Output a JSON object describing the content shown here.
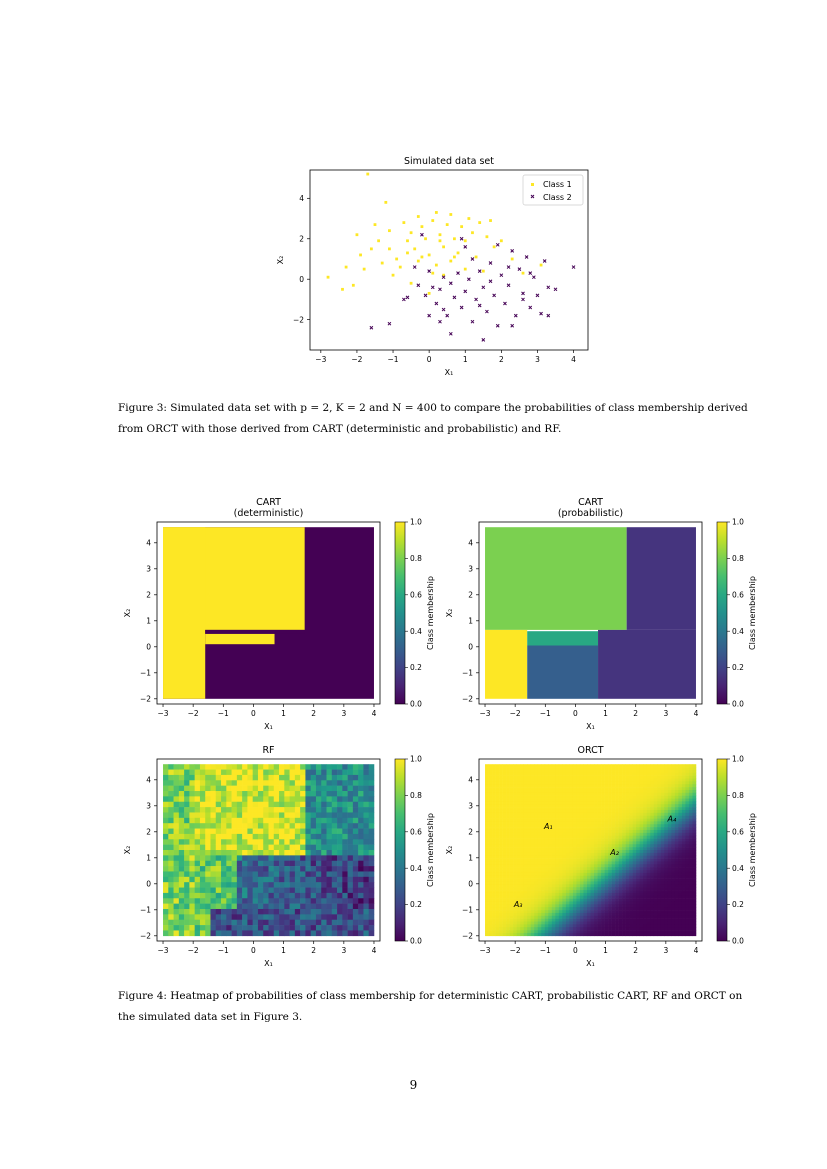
{
  "figure3": {
    "caption_line1": "Figure 3:  Simulated data set with p = 2, K = 2 and N = 400 to compare the probabilities of class membership derived",
    "caption_line2": "from ORCT with those derived from CART (deterministic and probabilistic) and RF."
  },
  "figure4": {
    "caption_line1": "Figure 4:  Heatmap of probabilities of class membership for deterministic CART, probabilistic CART, RF and ORCT on",
    "caption_line2": "the simulated data set in Figure 3."
  },
  "page_number": "9",
  "colors": {
    "yellow": "#fde725",
    "purple": "#440154",
    "green": "#a0da39",
    "teal": "#22a884",
    "midpurple": "#482878",
    "blue": "#3b528b"
  },
  "chart_data": [
    {
      "id": "scatter",
      "type": "scatter",
      "title": "Simulated data set",
      "xlabel": "X₁",
      "ylabel": "X₂",
      "xlim": [
        -3.3,
        4.4
      ],
      "ylim": [
        -3.5,
        5.4
      ],
      "xticks": [
        -3,
        -2,
        -1,
        0,
        1,
        2,
        3,
        4
      ],
      "yticks": [
        -2,
        0,
        2,
        4
      ],
      "legend_position": "top-right",
      "series": [
        {
          "name": "Class 1",
          "marker": "dot",
          "color": "#fde725",
          "points": [
            [
              -1.7,
              5.2
            ],
            [
              -1.2,
              3.8
            ],
            [
              -2.0,
              2.2
            ],
            [
              -1.6,
              1.5
            ],
            [
              -1.9,
              1.2
            ],
            [
              -2.3,
              0.6
            ],
            [
              -2.8,
              0.1
            ],
            [
              -2.1,
              -0.3
            ],
            [
              -2.4,
              -0.5
            ],
            [
              -1.8,
              0.5
            ],
            [
              -1.4,
              1.9
            ],
            [
              -1.1,
              2.4
            ],
            [
              -0.9,
              1.0
            ],
            [
              -0.7,
              2.8
            ],
            [
              -0.6,
              1.9
            ],
            [
              -0.5,
              2.3
            ],
            [
              -0.4,
              1.5
            ],
            [
              -0.3,
              3.1
            ],
            [
              -0.2,
              2.6
            ],
            [
              -0.1,
              2.0
            ],
            [
              0.0,
              1.2
            ],
            [
              0.1,
              2.9
            ],
            [
              0.2,
              3.3
            ],
            [
              0.3,
              2.2
            ],
            [
              0.4,
              1.6
            ],
            [
              0.5,
              2.7
            ],
            [
              0.6,
              3.2
            ],
            [
              0.7,
              2.0
            ],
            [
              0.8,
              1.3
            ],
            [
              0.9,
              2.6
            ],
            [
              1.0,
              1.9
            ],
            [
              1.1,
              3.0
            ],
            [
              1.2,
              2.3
            ],
            [
              1.3,
              1.1
            ],
            [
              1.4,
              2.8
            ],
            [
              1.6,
              2.1
            ],
            [
              1.8,
              1.6
            ],
            [
              -0.8,
              0.6
            ],
            [
              -0.3,
              0.9
            ],
            [
              0.2,
              0.7
            ],
            [
              0.6,
              0.9
            ],
            [
              -0.5,
              -0.2
            ],
            [
              -1.0,
              0.2
            ],
            [
              -1.3,
              0.8
            ],
            [
              0.4,
              0.2
            ],
            [
              1.0,
              0.5
            ],
            [
              -1.5,
              2.7
            ],
            [
              -0.2,
              1.1
            ],
            [
              0.7,
              1.1
            ],
            [
              2.3,
              1.0
            ],
            [
              3.1,
              0.7
            ],
            [
              2.6,
              0.3
            ],
            [
              1.5,
              0.4
            ],
            [
              0.0,
              -0.7
            ],
            [
              -0.6,
              1.3
            ],
            [
              0.3,
              1.9
            ],
            [
              -1.1,
              1.5
            ],
            [
              1.7,
              2.9
            ],
            [
              2.0,
              1.9
            ],
            [
              0.1,
              0.3
            ]
          ]
        },
        {
          "name": "Class 2",
          "marker": "x",
          "color": "#440154",
          "points": [
            [
              -1.6,
              -2.4
            ],
            [
              -1.1,
              -2.2
            ],
            [
              -0.7,
              -1.0
            ],
            [
              -0.4,
              0.6
            ],
            [
              -0.3,
              -0.3
            ],
            [
              -0.1,
              -0.8
            ],
            [
              0.0,
              0.4
            ],
            [
              0.2,
              -1.2
            ],
            [
              0.3,
              -0.5
            ],
            [
              0.4,
              0.1
            ],
            [
              0.5,
              -1.8
            ],
            [
              0.6,
              -0.2
            ],
            [
              0.7,
              -0.9
            ],
            [
              0.8,
              0.3
            ],
            [
              0.9,
              -1.4
            ],
            [
              1.0,
              -0.6
            ],
            [
              1.1,
              0.0
            ],
            [
              1.2,
              -2.1
            ],
            [
              1.3,
              -1.0
            ],
            [
              1.4,
              0.4
            ],
            [
              1.5,
              -0.4
            ],
            [
              1.6,
              -1.6
            ],
            [
              1.7,
              0.8
            ],
            [
              1.8,
              -0.8
            ],
            [
              1.9,
              -2.3
            ],
            [
              2.0,
              0.2
            ],
            [
              2.1,
              -1.2
            ],
            [
              2.2,
              -0.3
            ],
            [
              2.3,
              1.4
            ],
            [
              2.4,
              -1.8
            ],
            [
              2.5,
              0.5
            ],
            [
              2.6,
              -0.7
            ],
            [
              2.7,
              1.1
            ],
            [
              2.8,
              -1.4
            ],
            [
              2.9,
              0.1
            ],
            [
              3.0,
              -0.8
            ],
            [
              3.1,
              -1.7
            ],
            [
              3.2,
              0.9
            ],
            [
              3.3,
              -0.4
            ],
            [
              3.5,
              -0.5
            ],
            [
              4.0,
              0.6
            ],
            [
              0.6,
              -2.7
            ],
            [
              1.5,
              -3.0
            ],
            [
              2.3,
              -2.3
            ],
            [
              1.0,
              1.6
            ],
            [
              -0.2,
              2.2
            ],
            [
              0.9,
              2.0
            ],
            [
              0.3,
              -2.1
            ],
            [
              0.1,
              -0.4
            ],
            [
              1.4,
              -1.3
            ],
            [
              2.6,
              -1.0
            ],
            [
              3.3,
              -1.8
            ],
            [
              -0.6,
              -0.9
            ],
            [
              1.9,
              1.7
            ],
            [
              0.4,
              -1.5
            ],
            [
              1.2,
              1.0
            ],
            [
              2.2,
              0.6
            ],
            [
              1.7,
              -0.1
            ],
            [
              0.0,
              -1.8
            ],
            [
              2.8,
              0.3
            ]
          ]
        }
      ]
    },
    {
      "id": "cart_det",
      "type": "heatmap",
      "title": "CART\n(deterministic)",
      "xlabel": "X₁",
      "ylabel": "X₂",
      "colorbar_label": "Class membership",
      "xlim": [
        -3.2,
        4.2
      ],
      "ylim": [
        -2.2,
        4.8
      ],
      "xticks": [
        -3,
        -2,
        -1,
        0,
        1,
        2,
        3,
        4
      ],
      "yticks": [
        -2,
        -1,
        0,
        1,
        2,
        3,
        4
      ],
      "cbar_ticks": [
        "0.0",
        "0.2",
        "0.4",
        "0.6",
        "0.8",
        "1.0"
      ],
      "regions": [
        {
          "x": [
            -3,
            4.6
          ],
          "y": [
            -2,
            4.6
          ],
          "p": 0.0
        },
        {
          "x": [
            -3,
            1.7
          ],
          "y": [
            0.65,
            4.6
          ],
          "p": 1.0
        },
        {
          "x": [
            -3,
            -1.6
          ],
          "y": [
            -2,
            4.6
          ],
          "p": 1.0
        },
        {
          "x": [
            -1.6,
            0.7
          ],
          "y": [
            0.1,
            0.5
          ],
          "p": 1.0
        }
      ]
    },
    {
      "id": "cart_prob",
      "type": "heatmap",
      "title": "CART\n(probabilistic)",
      "xlabel": "X₁",
      "ylabel": "X₂",
      "colorbar_label": "Class membership",
      "xlim": [
        -3.2,
        4.2
      ],
      "ylim": [
        -2.2,
        4.8
      ],
      "xticks": [
        -3,
        -2,
        -1,
        0,
        1,
        2,
        3,
        4
      ],
      "yticks": [
        -2,
        -1,
        0,
        1,
        2,
        3,
        4
      ],
      "cbar_ticks": [
        "0.0",
        "0.2",
        "0.4",
        "0.6",
        "0.8",
        "1.0"
      ],
      "regions": [
        {
          "x": [
            -3,
            1.7
          ],
          "y": [
            0.65,
            4.6
          ],
          "p": 0.8
        },
        {
          "x": [
            1.7,
            4.0
          ],
          "y": [
            0.65,
            4.6
          ],
          "p": 0.15
        },
        {
          "x": [
            -3,
            -1.6
          ],
          "y": [
            -2,
            0.65
          ],
          "p": 1.0
        },
        {
          "x": [
            -1.6,
            0.75
          ],
          "y": [
            0.05,
            0.6
          ],
          "p": 0.6
        },
        {
          "x": [
            -1.6,
            0.75
          ],
          "y": [
            -2,
            0.05
          ],
          "p": 0.3
        },
        {
          "x": [
            0.75,
            4.0
          ],
          "y": [
            -2,
            0.65
          ],
          "p": 0.15
        }
      ]
    },
    {
      "id": "rf",
      "type": "heatmap",
      "title": "RF",
      "xlabel": "X₁",
      "ylabel": "X₂",
      "colorbar_label": "Class membership",
      "xlim": [
        -3.2,
        4.2
      ],
      "ylim": [
        -2.2,
        4.8
      ],
      "xticks": [
        -3,
        -2,
        -1,
        0,
        1,
        2,
        3,
        4
      ],
      "yticks": [
        -2,
        -1,
        0,
        1,
        2,
        3,
        4
      ],
      "cbar_ticks": [
        "0.0",
        "0.2",
        "0.4",
        "0.6",
        "0.8",
        "1.0"
      ]
    },
    {
      "id": "orct",
      "type": "heatmap",
      "title": "ORCT",
      "xlabel": "X₁",
      "ylabel": "X₂",
      "colorbar_label": "Class membership",
      "xlim": [
        -3.2,
        4.2
      ],
      "ylim": [
        -2.2,
        4.8
      ],
      "xticks": [
        -3,
        -2,
        -1,
        0,
        1,
        2,
        3,
        4
      ],
      "yticks": [
        -2,
        -1,
        0,
        1,
        2,
        3,
        4
      ],
      "cbar_ticks": [
        "0.0",
        "0.2",
        "0.4",
        "0.6",
        "0.8",
        "1.0"
      ],
      "annotations": [
        {
          "text": "A₁",
          "x": -0.9,
          "y": 2.1
        },
        {
          "text": "A₂",
          "x": 1.3,
          "y": 1.1
        },
        {
          "text": "A₃",
          "x": -1.9,
          "y": -0.9
        },
        {
          "text": "A₄",
          "x": 3.2,
          "y": 2.4
        }
      ]
    }
  ]
}
